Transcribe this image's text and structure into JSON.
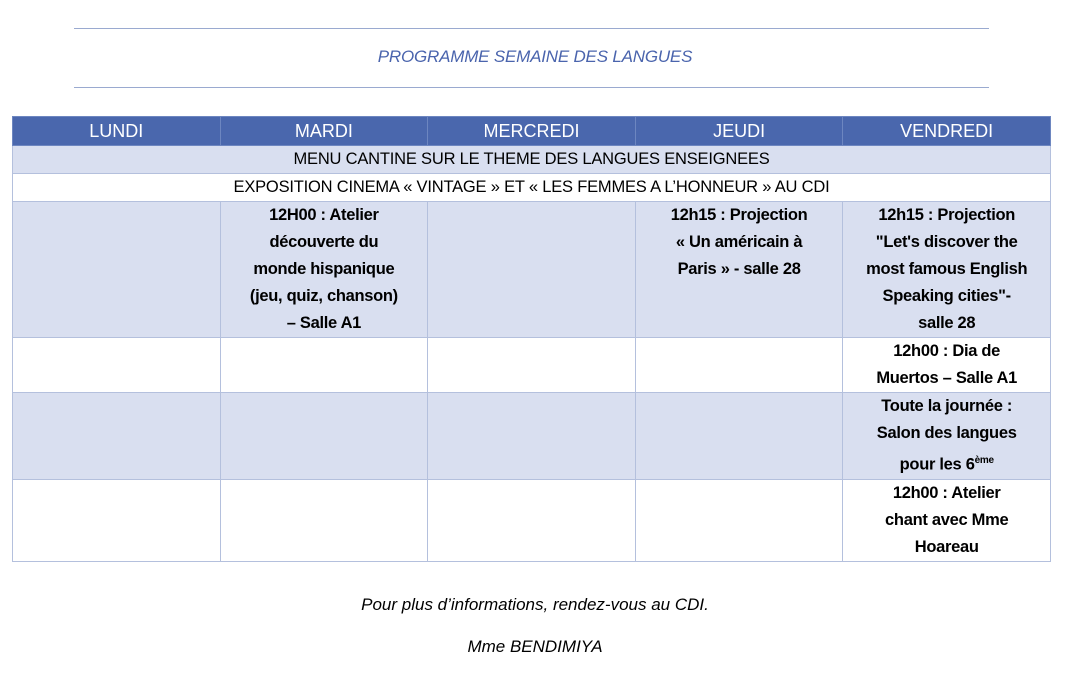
{
  "title": "PROGRAMME SEMAINE DES LANGUES",
  "days": [
    "LUNDI",
    "MARDI",
    "MERCREDI",
    "JEUDI",
    "VENDREDI"
  ],
  "banner_rows": [
    "MENU CANTINE SUR LE THEME DES LANGUES ENSEIGNEES",
    "EXPOSITION CINEMA « VINTAGE » ET « LES FEMMES A L’HONNEUR » AU CDI"
  ],
  "events": {
    "row1": {
      "mardi": "12H00 : Atelier\ndécouverte du\nmonde hispanique\n(jeu, quiz, chanson)\n– Salle A1",
      "jeudi": "12h15 : Projection\n« Un américain à\nParis » - salle 28",
      "vendredi": "12h15 : Projection\n\"Let's discover the\nmost famous English\nSpeaking cities\"-\nsalle 28"
    },
    "row2": {
      "vendredi": "12h00 :  Dia de\nMuertos – Salle A1"
    },
    "row3": {
      "vendredi": "Toute la journée :\nSalon des langues\npour les 6",
      "vendredi_sup": "ème"
    },
    "row4": {
      "vendredi": "12h00 : Atelier\nchant avec Mme\nHoareau"
    }
  },
  "footer": {
    "info": "Pour plus d’informations, rendez-vous au CDI.",
    "author": "Mme BENDIMIYA"
  },
  "colors": {
    "header": "#4a67ad",
    "shade": "#d9dff0",
    "title": "#4a64ad"
  }
}
